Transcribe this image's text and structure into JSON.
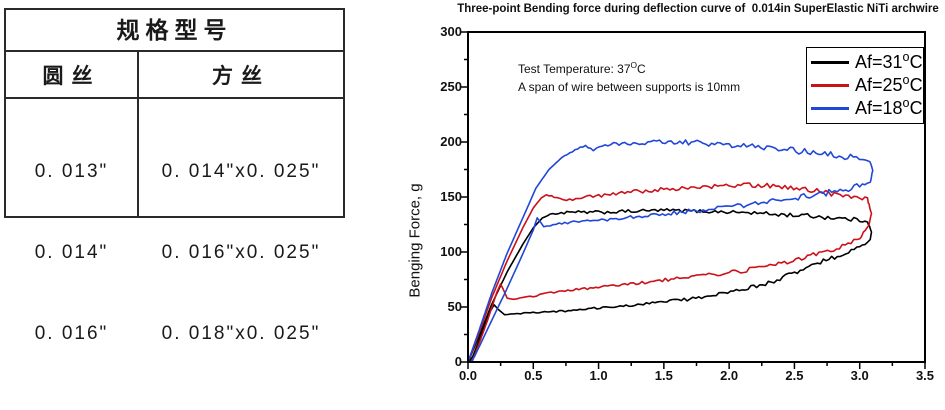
{
  "table": {
    "title": "规格型号",
    "columns": [
      {
        "header": "圆丝",
        "rows": [
          "0. 013\"",
          "0. 014\"",
          "0. 016\""
        ]
      },
      {
        "header": "方丝",
        "rows": [
          "0. 014\"x0. 025\"",
          "0. 016\"x0. 025\"",
          "0. 018\"x0. 025\""
        ]
      }
    ]
  },
  "chart_data": {
    "type": "line",
    "title": "Three-point Bending force during deflection curve of  0.014in SuperElastic NiTi archwire",
    "xlabel": "",
    "ylabel": "Benging Force, g",
    "xlim": [
      0,
      3.5
    ],
    "ylim": [
      0,
      300
    ],
    "xticks": [
      "0.0",
      "0.5",
      "1.0",
      "1.5",
      "2.0",
      "2.5",
      "3.0",
      "3.5"
    ],
    "yticks": [
      "0",
      "50",
      "100",
      "150",
      "200",
      "250",
      "300"
    ],
    "x_minor_step": 0.25,
    "y_minor_step": 25,
    "grid": false,
    "legend_position": "top-right",
    "annotations": [
      {
        "text": "Test Temperature: 37°C",
        "parts": {
          "main": "Test Temperature: 37",
          "sup": "O",
          "end": "C"
        }
      },
      {
        "text": "A span of wire between supports is 10mm"
      }
    ],
    "series": [
      {
        "name": "Af=31°C",
        "label_main": "Af=31",
        "label_sup": "o",
        "label_end": "C",
        "color": "#000000",
        "shape": "loading-unloading hysteresis loop, points as [deflection, force_g, noise_amp_g]",
        "points": [
          [
            0,
            0,
            0
          ],
          [
            0.08,
            22,
            0
          ],
          [
            0.18,
            52,
            0
          ],
          [
            0.3,
            82,
            0
          ],
          [
            0.42,
            107,
            0
          ],
          [
            0.5,
            122,
            0
          ],
          [
            0.57,
            131,
            0
          ],
          [
            0.65,
            135,
            1
          ],
          [
            0.8,
            136,
            1.5
          ],
          [
            1.0,
            136,
            1.5
          ],
          [
            1.25,
            137,
            1.5
          ],
          [
            1.5,
            138,
            1.5
          ],
          [
            1.8,
            137,
            1.5
          ],
          [
            2.1,
            136,
            1.5
          ],
          [
            2.4,
            134,
            2
          ],
          [
            2.6,
            133,
            2
          ],
          [
            2.8,
            131,
            2
          ],
          [
            3.0,
            129,
            2
          ],
          [
            3.06,
            128,
            1
          ],
          [
            3.09,
            118,
            0.5
          ],
          [
            3.08,
            111,
            0.5
          ],
          [
            3.0,
            104,
            2
          ],
          [
            2.85,
            97,
            2
          ],
          [
            2.7,
            91,
            2
          ],
          [
            2.5,
            81,
            2
          ],
          [
            2.3,
            72,
            2
          ],
          [
            2.1,
            66,
            1.5
          ],
          [
            1.9,
            61,
            1.5
          ],
          [
            1.7,
            57,
            1.5
          ],
          [
            1.5,
            55,
            1
          ],
          [
            1.3,
            52,
            1
          ],
          [
            1.1,
            50,
            1
          ],
          [
            0.9,
            48,
            1
          ],
          [
            0.7,
            46,
            1
          ],
          [
            0.5,
            45,
            0.5
          ],
          [
            0.38,
            44,
            0.5
          ],
          [
            0.28,
            43,
            0
          ],
          [
            0.23,
            48,
            0
          ],
          [
            0.2,
            52,
            0
          ],
          [
            0.17,
            46,
            0
          ],
          [
            0.1,
            24,
            0
          ],
          [
            0.04,
            6,
            0
          ],
          [
            0.01,
            0,
            0
          ]
        ]
      },
      {
        "name": "Af=25°C",
        "label_main": "Af=25",
        "label_sup": "o",
        "label_end": "C",
        "color": "#cc1019",
        "shape": "loading-unloading hysteresis loop, points as [deflection, force_g, noise_amp_g]",
        "points": [
          [
            0,
            0,
            0
          ],
          [
            0.08,
            25,
            0
          ],
          [
            0.18,
            58,
            0
          ],
          [
            0.3,
            92,
            0
          ],
          [
            0.42,
            122,
            0
          ],
          [
            0.5,
            140,
            0
          ],
          [
            0.56,
            149,
            0
          ],
          [
            0.6,
            152,
            0
          ],
          [
            0.66,
            150,
            1
          ],
          [
            0.73,
            147,
            1
          ],
          [
            0.85,
            149,
            1.5
          ],
          [
            1.0,
            151,
            1.5
          ],
          [
            1.2,
            154,
            2
          ],
          [
            1.5,
            157,
            2
          ],
          [
            1.8,
            159,
            2
          ],
          [
            2.0,
            160,
            2.5
          ],
          [
            2.2,
            161,
            2.5
          ],
          [
            2.45,
            159,
            2.5
          ],
          [
            2.65,
            156,
            2.5
          ],
          [
            2.85,
            152,
            2.5
          ],
          [
            3.0,
            150,
            2
          ],
          [
            3.06,
            148,
            1.5
          ],
          [
            3.09,
            135,
            0.5
          ],
          [
            3.07,
            124,
            0.5
          ],
          [
            3.0,
            112,
            2
          ],
          [
            2.8,
            103,
            2.5
          ],
          [
            2.6,
            96,
            2.5
          ],
          [
            2.4,
            90,
            2
          ],
          [
            2.2,
            85,
            2
          ],
          [
            2.0,
            81,
            2
          ],
          [
            1.8,
            79,
            1.5
          ],
          [
            1.6,
            76,
            1.5
          ],
          [
            1.4,
            73,
            1.5
          ],
          [
            1.2,
            70,
            1.5
          ],
          [
            1.0,
            68,
            1
          ],
          [
            0.85,
            66,
            1
          ],
          [
            0.7,
            64,
            1
          ],
          [
            0.55,
            61,
            1
          ],
          [
            0.45,
            59,
            0.5
          ],
          [
            0.35,
            57,
            0
          ],
          [
            0.3,
            58,
            0
          ],
          [
            0.27,
            66,
            0
          ],
          [
            0.25,
            71,
            0
          ],
          [
            0.22,
            63,
            0
          ],
          [
            0.15,
            38,
            0
          ],
          [
            0.07,
            12,
            0
          ],
          [
            0.03,
            0,
            0
          ]
        ]
      },
      {
        "name": "Af=18°C",
        "label_main": "Af=18",
        "label_sup": "o",
        "label_end": "C",
        "color": "#2147d8",
        "shape": "loading-unloading hysteresis loop, points as [deflection, force_g, noise_amp_g]",
        "points": [
          [
            0,
            0,
            0
          ],
          [
            0.08,
            27,
            0
          ],
          [
            0.18,
            62,
            0
          ],
          [
            0.3,
            99,
            0
          ],
          [
            0.42,
            131,
            0
          ],
          [
            0.52,
            158,
            0
          ],
          [
            0.62,
            175,
            0
          ],
          [
            0.72,
            186,
            0
          ],
          [
            0.82,
            193,
            1
          ],
          [
            0.9,
            196,
            1
          ],
          [
            0.96,
            192,
            1
          ],
          [
            1.05,
            197,
            1.5
          ],
          [
            1.2,
            199,
            2
          ],
          [
            1.4,
            200,
            2
          ],
          [
            1.6,
            200,
            2
          ],
          [
            1.8,
            199,
            2.5
          ],
          [
            2.0,
            197,
            2.5
          ],
          [
            2.2,
            196,
            2.5
          ],
          [
            2.4,
            193,
            3
          ],
          [
            2.6,
            191,
            3
          ],
          [
            2.8,
            188,
            3
          ],
          [
            2.95,
            186,
            3
          ],
          [
            3.07,
            184,
            2
          ],
          [
            3.1,
            174,
            1
          ],
          [
            3.08,
            163,
            1
          ],
          [
            3.0,
            160,
            2.5
          ],
          [
            2.85,
            156,
            3
          ],
          [
            2.7,
            153,
            3
          ],
          [
            2.55,
            150,
            2.5
          ],
          [
            2.4,
            147,
            2.5
          ],
          [
            2.2,
            144,
            2.5
          ],
          [
            2.0,
            141,
            2
          ],
          [
            1.8,
            138,
            2
          ],
          [
            1.6,
            136,
            2
          ],
          [
            1.4,
            133,
            1.5
          ],
          [
            1.2,
            131,
            1.5
          ],
          [
            1.0,
            129,
            1.5
          ],
          [
            0.85,
            128,
            1
          ],
          [
            0.72,
            126,
            1
          ],
          [
            0.63,
            124,
            0.5
          ],
          [
            0.58,
            123,
            0
          ],
          [
            0.55,
            128,
            0
          ],
          [
            0.53,
            131,
            0
          ],
          [
            0.5,
            120,
            0
          ],
          [
            0.4,
            93,
            0
          ],
          [
            0.28,
            62,
            0
          ],
          [
            0.15,
            30,
            0
          ],
          [
            0.05,
            5,
            0
          ],
          [
            0.02,
            0,
            0
          ]
        ]
      }
    ]
  }
}
